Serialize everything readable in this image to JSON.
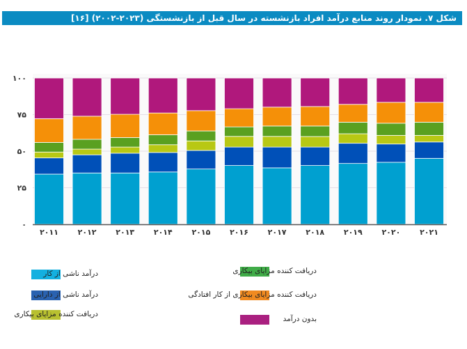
{
  "title": "شکل ۷. نمودار روند منابع درآمد افراد بازنشسته در سال قبل از بازنشستگی (۲۰۲۳-۲۰۰۲) [۱۶]",
  "chart_data": {
    "type": "bar",
    "stacked": true,
    "title": "شکل ۷. نمودار روند منابع درآمد افراد بازنشسته در سال قبل از بازنشستگی (۲۰۲۳-۲۰۰۲) [۱۶]",
    "xlabel": "",
    "ylabel": "",
    "ylim": [
      0,
      100
    ],
    "yticks": [
      0,
      25,
      50,
      75,
      100
    ],
    "ytick_labels": [
      "۰",
      "۲۵",
      "۵۰",
      "۷۵",
      "۱۰۰"
    ],
    "categories": [
      "۲۰۱۱",
      "۲۰۱۲",
      "۲۰۱۳",
      "۲۰۱۴",
      "۲۰۱۵",
      "۲۰۱۶",
      "۲۰۱۷",
      "۲۰۱۸",
      "۲۰۱۹",
      "۲۰۲۰",
      "۲۰۲۱"
    ],
    "grid": true,
    "legend_placement": "bottom",
    "series": [
      {
        "name": "درآمد ناشی از کار",
        "color": "#00a0d0",
        "legend_color": "#14b0e0",
        "values": [
          34.3,
          35.1,
          35.1,
          35.8,
          37.8,
          40.2,
          38.6,
          40.2,
          41.6,
          42.4,
          45.1
        ]
      },
      {
        "name": "درآمد ناشی از دارایی",
        "color": "#0050b8",
        "legend_color": "#2a62b0",
        "values": [
          11.1,
          12.4,
          13.5,
          13.3,
          12.7,
          12.6,
          14.2,
          12.6,
          13.8,
          12.5,
          11.2
        ]
      },
      {
        "name": "دریافت کننده مزایای بیکاری",
        "color": "#b8c814",
        "legend_color": "#b8c030",
        "values": [
          4.0,
          3.9,
          4.2,
          5.3,
          6.5,
          7.3,
          7.3,
          7.2,
          6.5,
          5.9,
          4.5
        ]
      },
      {
        "name": "دریافت کننده مزایای بیکاری",
        "color": "#5aa020",
        "legend_color": "#40ac48",
        "values": [
          6.6,
          6.7,
          6.5,
          6.8,
          6.8,
          6.5,
          7.1,
          7.2,
          7.9,
          8.3,
          9.0
        ]
      },
      {
        "name": "دریافت کننده مزایای بیکاری از کار افتادگی",
        "color": "#f59008",
        "legend_color": "#f08a20",
        "values": [
          16.2,
          15.8,
          15.9,
          14.9,
          13.9,
          12.4,
          12.9,
          13.3,
          12.2,
          14.3,
          13.6
        ]
      },
      {
        "name": "بدون درآمد",
        "color": "#b0187c",
        "legend_color": "#aa2080",
        "values": [
          27.8,
          26.1,
          24.8,
          23.9,
          22.3,
          21.0,
          19.9,
          19.5,
          18.0,
          16.6,
          16.6
        ]
      }
    ]
  }
}
